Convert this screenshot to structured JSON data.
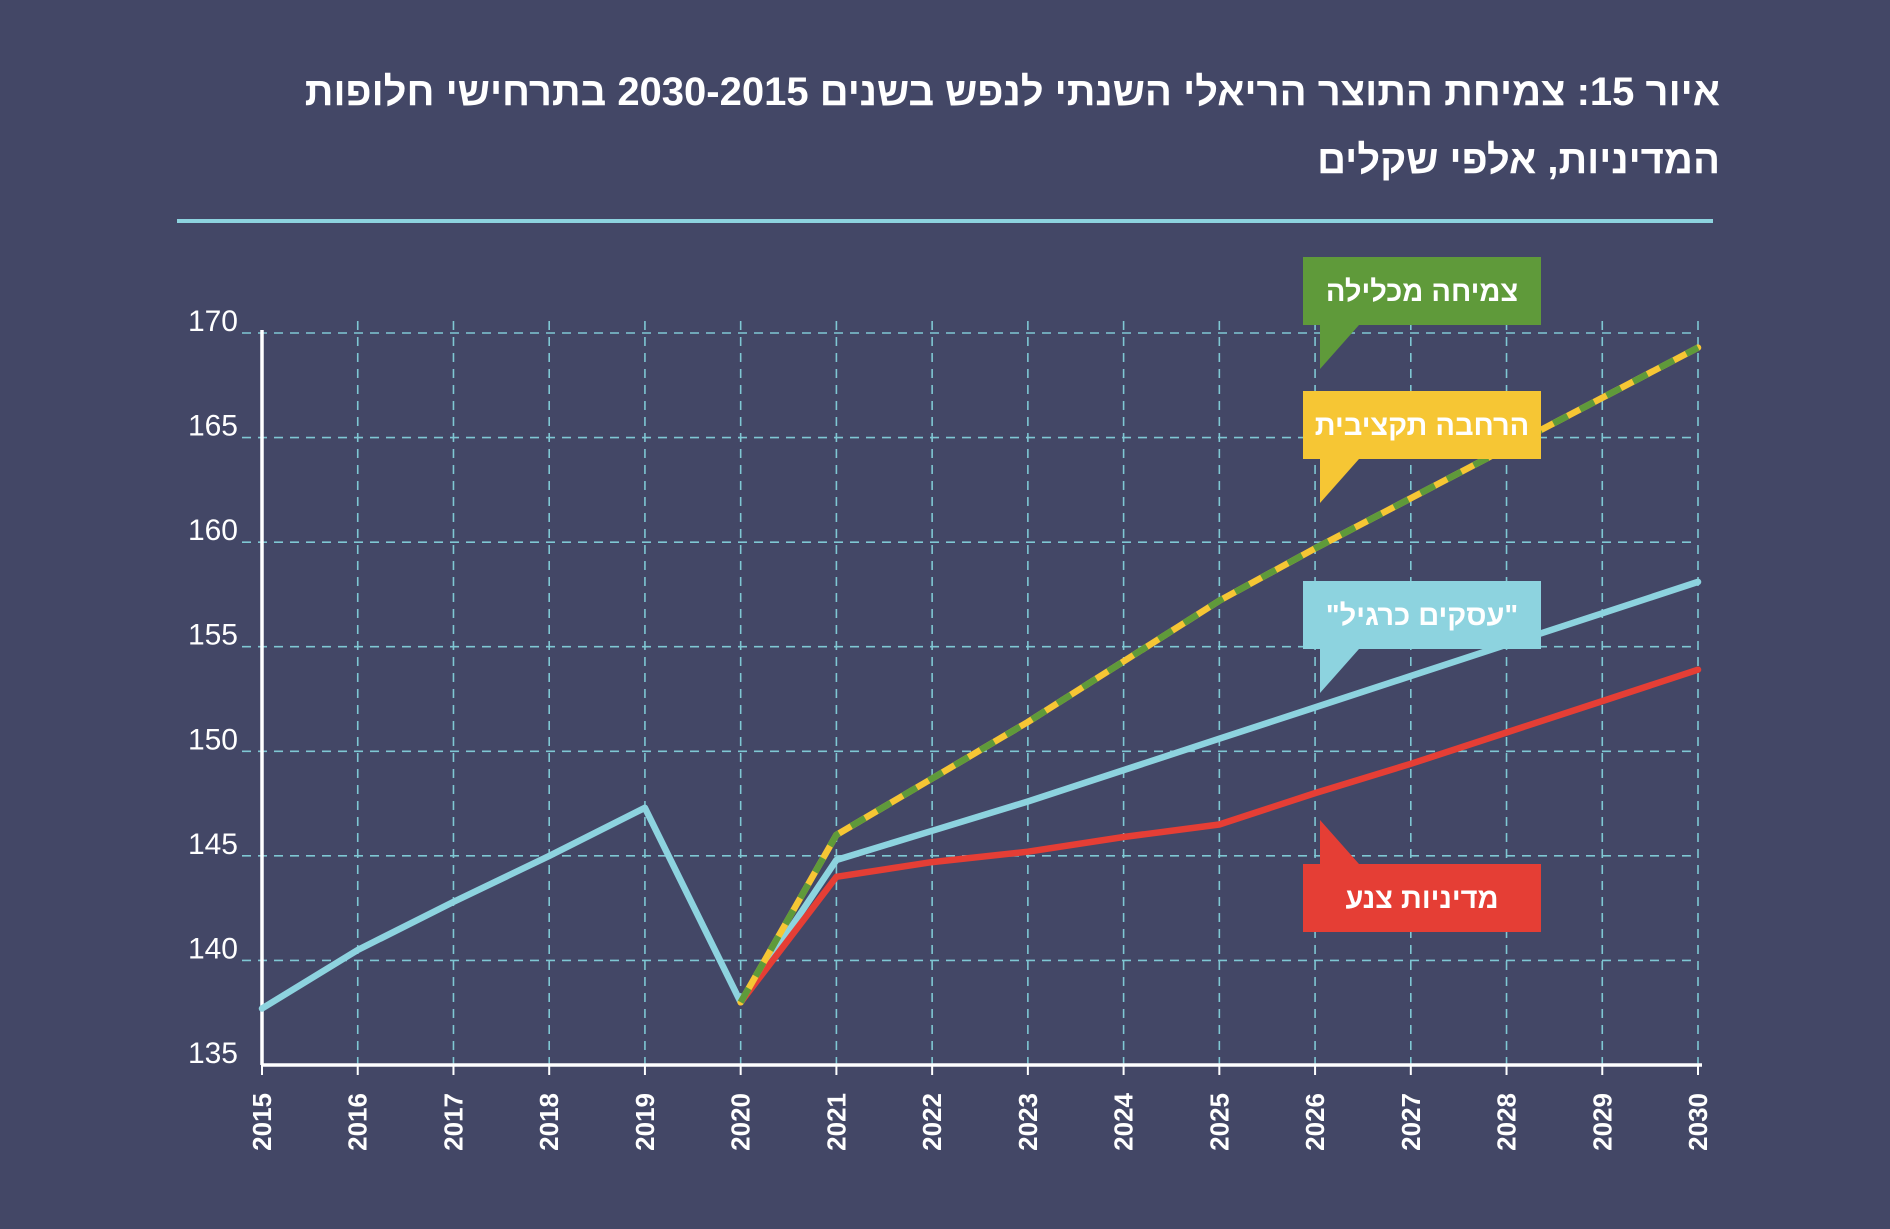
{
  "title": "איור 15: צמיחת התוצר הריאלי השנתי לנפש בשנים 2030-2015 בתרחישי חלופות המדיניות, אלפי שקלים",
  "colors": {
    "background": "#434766",
    "grid": "#7fc7d3",
    "axis": "#ffffff",
    "title_rule": "#8dd3df"
  },
  "chart_data": {
    "type": "line",
    "title": "איור 15: צמיחת התוצר הריאלי השנתי לנפש בשנים 2030-2015 בתרחישי חלופות המדיניות, אלפי שקלים",
    "x": [
      2015,
      2016,
      2017,
      2018,
      2019,
      2020,
      2021,
      2022,
      2023,
      2024,
      2025,
      2026,
      2027,
      2028,
      2029,
      2030
    ],
    "ylim": [
      135,
      170
    ],
    "yticks": [
      135,
      140,
      145,
      150,
      155,
      160,
      165,
      170
    ],
    "grid": true,
    "series": [
      {
        "name": "\"עסקים כרגיל\"",
        "color": "#8dd3df",
        "style": "solid",
        "x": [
          2015,
          2016,
          2017,
          2018,
          2019,
          2020,
          2021,
          2022,
          2023,
          2024,
          2025,
          2026,
          2027,
          2028,
          2029,
          2030
        ],
        "values": [
          137.7,
          140.5,
          142.8,
          145.0,
          147.3,
          138.0,
          144.8,
          146.2,
          147.6,
          149.1,
          150.6,
          152.1,
          153.6,
          155.1,
          156.6,
          158.1
        ]
      },
      {
        "name": "מדיניות צנע",
        "color": "#e53e35",
        "style": "solid",
        "x": [
          2020,
          2021,
          2022,
          2023,
          2024,
          2025,
          2026,
          2027,
          2028,
          2029,
          2030
        ],
        "values": [
          138.0,
          144.0,
          144.7,
          145.2,
          145.9,
          146.5,
          148.0,
          149.4,
          150.9,
          152.4,
          153.9
        ]
      },
      {
        "name": "הרחבה תקציבית",
        "color": "#f6c634",
        "style": "solid",
        "x": [
          2020,
          2021,
          2022,
          2023,
          2024,
          2025,
          2026,
          2027,
          2028,
          2029,
          2030
        ],
        "values": [
          138.0,
          146.0,
          148.7,
          151.4,
          154.3,
          157.2,
          159.7,
          162.1,
          164.5,
          166.9,
          169.3
        ]
      },
      {
        "name": "צמיחה מכלילה",
        "color": "#5f9a3a",
        "style": "dashed",
        "x": [
          2020,
          2021,
          2022,
          2023,
          2024,
          2025,
          2026,
          2027,
          2028,
          2029,
          2030
        ],
        "values": [
          138.0,
          146.0,
          148.7,
          151.4,
          154.3,
          157.2,
          159.7,
          162.1,
          164.5,
          166.9,
          169.3
        ]
      }
    ],
    "legend": [
      {
        "label": "צמיחה מכלילה",
        "color": "#5f9a3a",
        "pointer": "bottom-left"
      },
      {
        "label": "הרחבה תקציבית",
        "color": "#f6c634",
        "pointer": "bottom-left"
      },
      {
        "label": "\"עסקים כרגיל\"",
        "color": "#8dd3df",
        "pointer": "bottom-left"
      },
      {
        "label": "מדיניות צנע",
        "color": "#e53e35",
        "pointer": "top-left"
      }
    ]
  }
}
